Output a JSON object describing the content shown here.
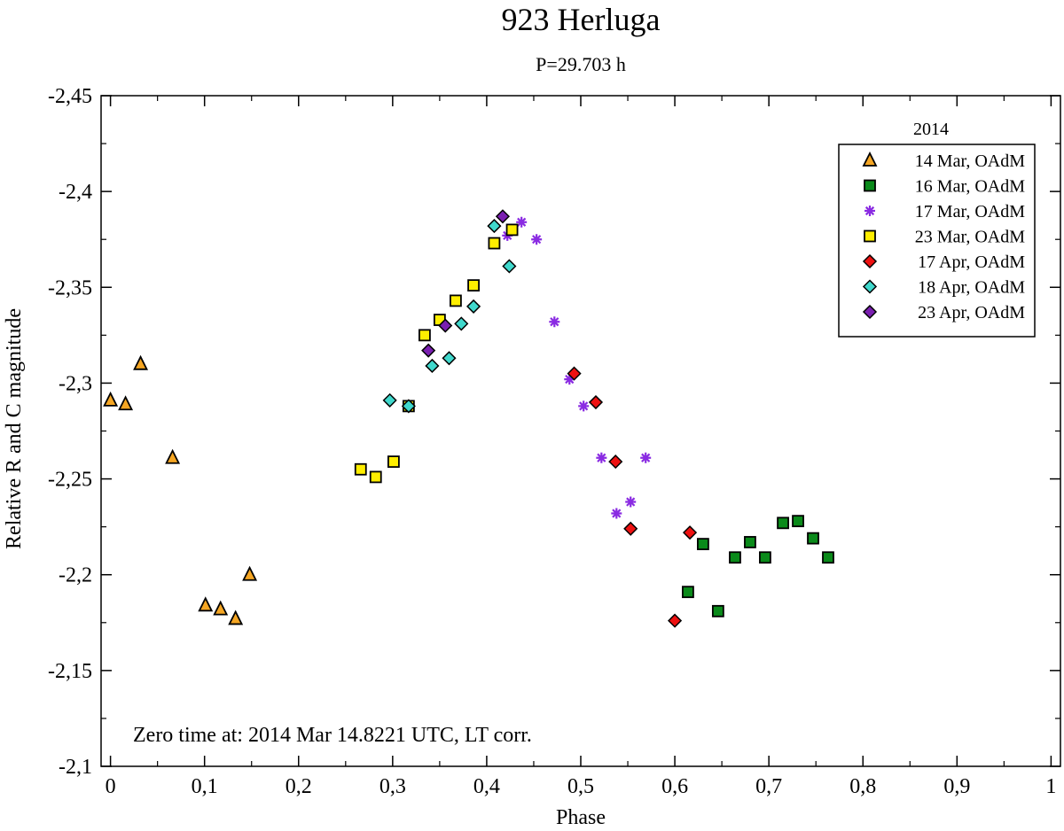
{
  "chart_data": {
    "type": "scatter",
    "title": "923 Herluga",
    "subtitle": "P=29.703 h",
    "xlabel": "Phase",
    "ylabel": "Relative R and C magnitude",
    "xlim": [
      -0.01,
      1.01
    ],
    "ylim": [
      -2.45,
      -2.1
    ],
    "x_ticks": [
      0,
      0.1,
      0.2,
      0.3,
      0.4,
      0.5,
      0.6,
      0.7,
      0.8,
      0.9,
      1
    ],
    "x_tick_labels": [
      "0",
      "0,1",
      "0,2",
      "0,3",
      "0,4",
      "0,5",
      "0,6",
      "0,7",
      "0,8",
      "0,9",
      "1"
    ],
    "y_ticks": [
      -2.45,
      -2.4,
      -2.35,
      -2.3,
      -2.25,
      -2.2,
      -2.15,
      -2.1
    ],
    "y_tick_labels": [
      "-2,45",
      "-2,4",
      "-2,35",
      "-2,3",
      "-2,25",
      "-2,2",
      "-2,15",
      "-2,1"
    ],
    "legend_title": "2014",
    "legend_position": "top-right",
    "annotation": "Zero time at: 2014 Mar 14.8221 UTC, LT corr.",
    "grid": false,
    "series": [
      {
        "name": "14 Mar, OAdM",
        "marker": "triangle",
        "color": "#f5a623",
        "points": [
          [
            0.0,
            -2.291
          ],
          [
            0.016,
            -2.289
          ],
          [
            0.032,
            -2.31
          ],
          [
            0.066,
            -2.261
          ],
          [
            0.101,
            -2.184
          ],
          [
            0.117,
            -2.182
          ],
          [
            0.133,
            -2.177
          ],
          [
            0.148,
            -2.2
          ]
        ]
      },
      {
        "name": "16 Mar, OAdM",
        "marker": "square",
        "color": "#0a8a1a",
        "points": [
          [
            0.614,
            -2.191
          ],
          [
            0.63,
            -2.216
          ],
          [
            0.646,
            -2.181
          ],
          [
            0.664,
            -2.209
          ],
          [
            0.68,
            -2.217
          ],
          [
            0.696,
            -2.209
          ],
          [
            0.715,
            -2.227
          ],
          [
            0.731,
            -2.228
          ],
          [
            0.747,
            -2.219
          ],
          [
            0.763,
            -2.209
          ]
        ]
      },
      {
        "name": "17 Mar, OAdM",
        "marker": "asterisk",
        "color": "#8a2be2",
        "points": [
          [
            0.422,
            -2.377
          ],
          [
            0.437,
            -2.384
          ],
          [
            0.453,
            -2.375
          ],
          [
            0.472,
            -2.332
          ],
          [
            0.488,
            -2.302
          ],
          [
            0.503,
            -2.288
          ],
          [
            0.522,
            -2.261
          ],
          [
            0.538,
            -2.232
          ],
          [
            0.553,
            -2.238
          ],
          [
            0.569,
            -2.261
          ]
        ]
      },
      {
        "name": "23 Mar, OAdM",
        "marker": "square",
        "color": "#ffee00",
        "points": [
          [
            0.266,
            -2.255
          ],
          [
            0.282,
            -2.251
          ],
          [
            0.301,
            -2.259
          ],
          [
            0.317,
            -2.288
          ],
          [
            0.334,
            -2.325
          ],
          [
            0.35,
            -2.333
          ],
          [
            0.367,
            -2.343
          ],
          [
            0.386,
            -2.351
          ],
          [
            0.408,
            -2.373
          ],
          [
            0.427,
            -2.38
          ]
        ]
      },
      {
        "name": "17 Apr, OAdM",
        "marker": "diamond",
        "color": "#ee1111",
        "points": [
          [
            0.493,
            -2.305
          ],
          [
            0.516,
            -2.29
          ],
          [
            0.537,
            -2.259
          ],
          [
            0.553,
            -2.224
          ],
          [
            0.6,
            -2.176
          ],
          [
            0.616,
            -2.222
          ]
        ]
      },
      {
        "name": "18 Apr, OAdM",
        "marker": "diamond",
        "color": "#40d8cc",
        "points": [
          [
            0.297,
            -2.291
          ],
          [
            0.317,
            -2.288
          ],
          [
            0.342,
            -2.309
          ],
          [
            0.36,
            -2.313
          ],
          [
            0.373,
            -2.331
          ],
          [
            0.386,
            -2.34
          ],
          [
            0.408,
            -2.382
          ],
          [
            0.424,
            -2.361
          ]
        ]
      },
      {
        "name": "23 Apr, OAdM",
        "marker": "diamond",
        "color": "#7a1fb0",
        "points": [
          [
            0.338,
            -2.317
          ],
          [
            0.356,
            -2.33
          ],
          [
            0.417,
            -2.387
          ]
        ]
      }
    ]
  }
}
